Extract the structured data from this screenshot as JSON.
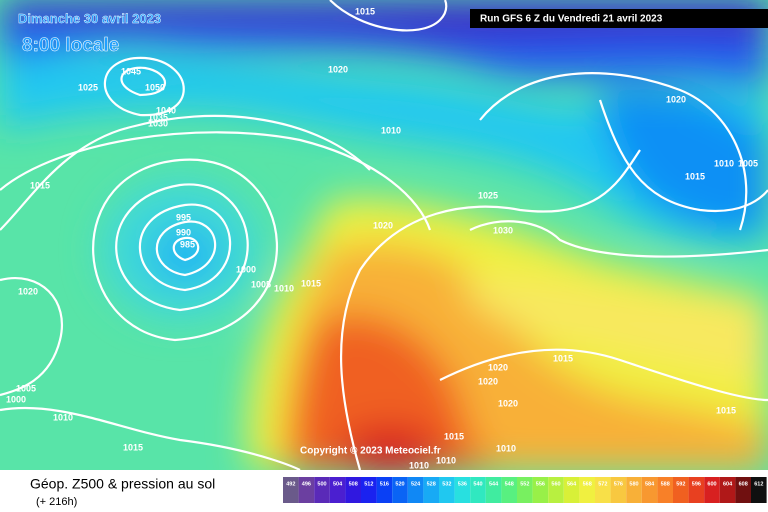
{
  "header": {
    "date": "Dimanche 30 avril 2023",
    "time": "8:00 locale",
    "run": "Run GFS 6 Z du Vendredi 21 avril 2023"
  },
  "isobar_labels": [
    "1015",
    "1020",
    "1045",
    "1050",
    "1025",
    "1040",
    "1035",
    "1030",
    "1010",
    "1020",
    "1015",
    "1025",
    "1010",
    "1005",
    "1015",
    "995",
    "990",
    "985",
    "1020",
    "1030",
    "1000",
    "1005",
    "1010",
    "1015",
    "1020",
    "1015",
    "1020",
    "1020",
    "1005",
    "1000",
    "1010",
    "1020",
    "1015",
    "1015",
    "1010",
    "1015",
    "1010",
    "1010"
  ],
  "copyright": "Copyright © 2023 Meteociel.fr",
  "footer": {
    "title": "Géop. Z500 & pression au sol",
    "subtitle": "(+ 216h)"
  },
  "scale": {
    "values": [
      492,
      496,
      500,
      504,
      508,
      512,
      516,
      520,
      524,
      528,
      532,
      536,
      540,
      544,
      548,
      552,
      556,
      560,
      564,
      568,
      572,
      576,
      580,
      584,
      588,
      592,
      596,
      600,
      604,
      608,
      612
    ],
    "colors": [
      "#6a5a8a",
      "#6b3fa0",
      "#5a2ab8",
      "#4b1fd0",
      "#3018e0",
      "#1a22f0",
      "#0a40f5",
      "#0a64f5",
      "#1088f5",
      "#18aaf5",
      "#20c8f0",
      "#28e0e0",
      "#30e8c0",
      "#40eca0",
      "#58f080",
      "#78f060",
      "#98f048",
      "#b8f040",
      "#d8f038",
      "#f0f040",
      "#f8e048",
      "#f8c840",
      "#f8b038",
      "#f89830",
      "#f88028",
      "#f06020",
      "#e84020",
      "#d82020",
      "#b01818",
      "#701010",
      "#101010"
    ]
  }
}
